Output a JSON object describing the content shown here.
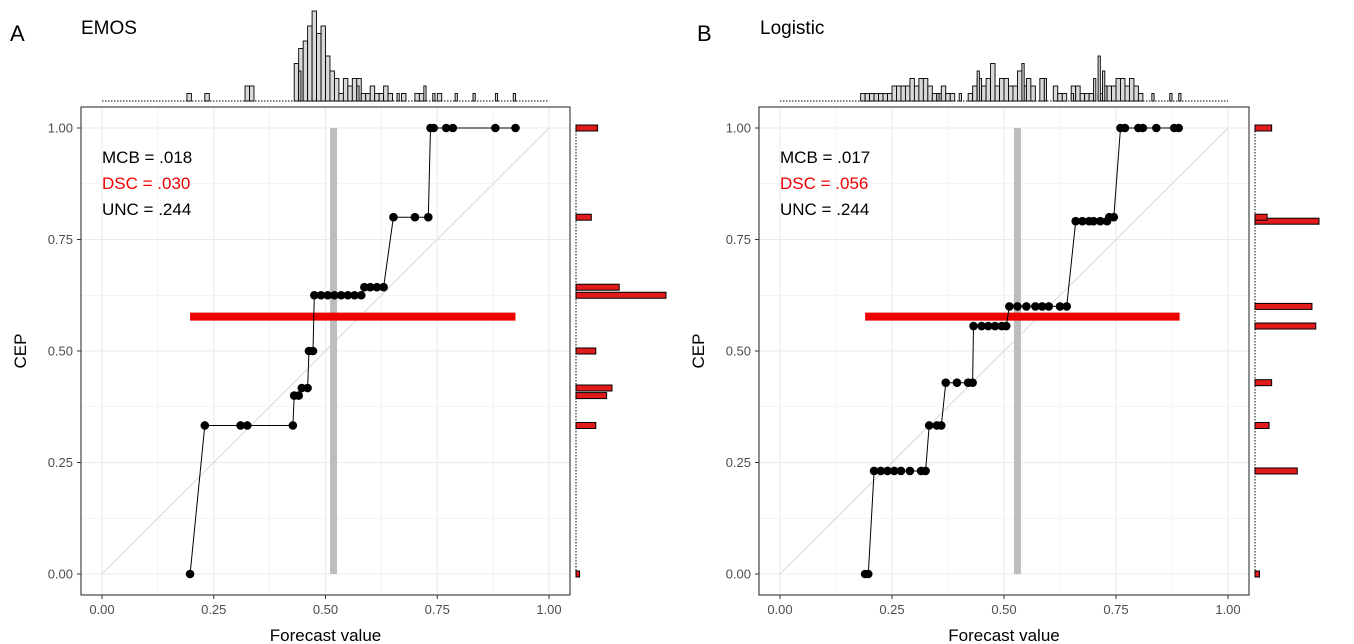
{
  "colors": {
    "background": "#ffffff",
    "grid": "#ebebeb",
    "axis": "#333333",
    "reference_diagonal": "#d9d9d9",
    "vertical_marker": "#bdbdbd",
    "horizontal_marker": "#ee0000",
    "reliability_curve": "#000000",
    "top_histogram_fill": "#d9d9d9",
    "side_histogram_fill": "#e31a1c",
    "dsc_text": "#ee0000"
  },
  "chart_data": [
    {
      "type": "line",
      "panel_letter": "A",
      "title": "EMOS",
      "xlabel": "Forecast value",
      "ylabel": "CEP",
      "xlim": [
        0,
        1
      ],
      "ylim": [
        0,
        1
      ],
      "x_ticks": [
        "0.00",
        "0.25",
        "0.50",
        "0.75",
        "1.00"
      ],
      "y_ticks": [
        "0.00",
        "0.25",
        "0.50",
        "0.75",
        "1.00"
      ],
      "grid": true,
      "stats": [
        {
          "label": "MCB = .018",
          "highlight": false
        },
        {
          "label": "DSC = .030",
          "highlight": true
        },
        {
          "label": "UNC = .244",
          "highlight": false
        }
      ],
      "vertical_marker_x": 0.518,
      "horizontal_marker": {
        "y": 0.577,
        "x_from": 0.197,
        "x_to": 0.925
      },
      "step_points": [
        {
          "x": 0.197,
          "y": 0.0
        },
        {
          "x": 0.23,
          "y": 0.333
        },
        {
          "x": 0.31,
          "y": 0.333
        },
        {
          "x": 0.325,
          "y": 0.333
        },
        {
          "x": 0.427,
          "y": 0.333
        },
        {
          "x": 0.43,
          "y": 0.4
        },
        {
          "x": 0.44,
          "y": 0.4
        },
        {
          "x": 0.447,
          "y": 0.417
        },
        {
          "x": 0.46,
          "y": 0.417
        },
        {
          "x": 0.463,
          "y": 0.5
        },
        {
          "x": 0.472,
          "y": 0.5
        },
        {
          "x": 0.475,
          "y": 0.625
        },
        {
          "x": 0.49,
          "y": 0.625
        },
        {
          "x": 0.505,
          "y": 0.625
        },
        {
          "x": 0.52,
          "y": 0.625
        },
        {
          "x": 0.535,
          "y": 0.625
        },
        {
          "x": 0.55,
          "y": 0.625
        },
        {
          "x": 0.565,
          "y": 0.625
        },
        {
          "x": 0.58,
          "y": 0.625
        },
        {
          "x": 0.587,
          "y": 0.643
        },
        {
          "x": 0.6,
          "y": 0.643
        },
        {
          "x": 0.615,
          "y": 0.643
        },
        {
          "x": 0.63,
          "y": 0.643
        },
        {
          "x": 0.652,
          "y": 0.8
        },
        {
          "x": 0.7,
          "y": 0.8
        },
        {
          "x": 0.73,
          "y": 0.8
        },
        {
          "x": 0.735,
          "y": 1.0
        },
        {
          "x": 0.742,
          "y": 1.0
        },
        {
          "x": 0.77,
          "y": 1.0
        },
        {
          "x": 0.785,
          "y": 1.0
        },
        {
          "x": 0.88,
          "y": 1.0
        },
        {
          "x": 0.925,
          "y": 1.0
        }
      ],
      "top_histogram": {
        "bin_start": 0.0,
        "bin_width": 0.01,
        "counts": [
          0,
          0,
          0,
          0,
          0,
          0,
          0,
          0,
          0,
          0,
          0,
          0,
          0,
          0,
          0,
          0,
          0,
          0,
          0,
          1,
          0,
          0,
          0,
          1,
          0,
          0,
          0,
          0,
          0,
          0,
          0,
          0,
          2,
          2,
          0,
          0,
          0,
          0,
          0,
          0,
          0,
          0,
          0,
          5,
          7,
          8,
          10,
          12,
          9,
          10,
          6,
          4,
          3,
          1,
          3,
          2,
          3,
          3,
          1,
          1,
          2,
          1,
          1,
          2,
          1,
          0,
          0,
          1,
          0,
          0,
          1,
          1,
          0,
          0,
          0,
          1,
          0,
          0,
          0,
          0,
          0,
          0,
          0,
          0,
          0,
          0,
          0,
          0,
          0,
          0,
          0,
          0,
          0,
          0,
          0,
          0,
          0,
          0,
          0,
          0
        ],
        "extra_bars": [
          {
            "x": 0.575,
            "count": 2
          },
          {
            "x": 0.665,
            "count": 1
          },
          {
            "x": 0.795,
            "count": 1
          },
          {
            "x": 0.835,
            "count": 1
          },
          {
            "x": 0.885,
            "count": 1
          },
          {
            "x": 0.925,
            "count": 1
          },
          {
            "x": 0.725,
            "count": 2
          },
          {
            "x": 0.745,
            "count": 1
          },
          {
            "x": 0.445,
            "count": 4
          }
        ]
      },
      "side_histogram": [
        {
          "y": 0.0,
          "count": 0.04
        },
        {
          "y": 0.333,
          "count": 0.22
        },
        {
          "y": 0.4,
          "count": 0.34
        },
        {
          "y": 0.417,
          "count": 0.4
        },
        {
          "y": 0.5,
          "count": 0.22
        },
        {
          "y": 0.625,
          "count": 1.0
        },
        {
          "y": 0.643,
          "count": 0.48
        },
        {
          "y": 0.8,
          "count": 0.17
        },
        {
          "y": 1.0,
          "count": 0.24
        }
      ]
    },
    {
      "type": "line",
      "panel_letter": "B",
      "title": "Logistic",
      "xlabel": "Forecast value",
      "ylabel": "CEP",
      "xlim": [
        0,
        1
      ],
      "ylim": [
        0,
        1
      ],
      "x_ticks": [
        "0.00",
        "0.25",
        "0.50",
        "0.75",
        "1.00"
      ],
      "y_ticks": [
        "0.00",
        "0.25",
        "0.50",
        "0.75",
        "1.00"
      ],
      "grid": true,
      "stats": [
        {
          "label": "MCB = .017",
          "highlight": false
        },
        {
          "label": "DSC = .056",
          "highlight": true
        },
        {
          "label": "UNC = .244",
          "highlight": false
        }
      ],
      "vertical_marker_x": 0.53,
      "horizontal_marker": {
        "y": 0.577,
        "x_from": 0.19,
        "x_to": 0.892
      },
      "step_points": [
        {
          "x": 0.19,
          "y": 0.0
        },
        {
          "x": 0.197,
          "y": 0.0
        },
        {
          "x": 0.21,
          "y": 0.231
        },
        {
          "x": 0.225,
          "y": 0.231
        },
        {
          "x": 0.24,
          "y": 0.231
        },
        {
          "x": 0.255,
          "y": 0.231
        },
        {
          "x": 0.27,
          "y": 0.231
        },
        {
          "x": 0.29,
          "y": 0.231
        },
        {
          "x": 0.315,
          "y": 0.231
        },
        {
          "x": 0.325,
          "y": 0.231
        },
        {
          "x": 0.333,
          "y": 0.333
        },
        {
          "x": 0.35,
          "y": 0.333
        },
        {
          "x": 0.36,
          "y": 0.333
        },
        {
          "x": 0.37,
          "y": 0.429
        },
        {
          "x": 0.395,
          "y": 0.429
        },
        {
          "x": 0.42,
          "y": 0.429
        },
        {
          "x": 0.43,
          "y": 0.429
        },
        {
          "x": 0.432,
          "y": 0.556
        },
        {
          "x": 0.45,
          "y": 0.556
        },
        {
          "x": 0.465,
          "y": 0.556
        },
        {
          "x": 0.48,
          "y": 0.556
        },
        {
          "x": 0.495,
          "y": 0.556
        },
        {
          "x": 0.505,
          "y": 0.556
        },
        {
          "x": 0.512,
          "y": 0.6
        },
        {
          "x": 0.53,
          "y": 0.6
        },
        {
          "x": 0.55,
          "y": 0.6
        },
        {
          "x": 0.57,
          "y": 0.6
        },
        {
          "x": 0.585,
          "y": 0.6
        },
        {
          "x": 0.6,
          "y": 0.6
        },
        {
          "x": 0.625,
          "y": 0.6
        },
        {
          "x": 0.64,
          "y": 0.6
        },
        {
          "x": 0.66,
          "y": 0.791
        },
        {
          "x": 0.675,
          "y": 0.791
        },
        {
          "x": 0.69,
          "y": 0.791
        },
        {
          "x": 0.7,
          "y": 0.791
        },
        {
          "x": 0.715,
          "y": 0.791
        },
        {
          "x": 0.73,
          "y": 0.791
        },
        {
          "x": 0.735,
          "y": 0.8
        },
        {
          "x": 0.745,
          "y": 0.8
        },
        {
          "x": 0.76,
          "y": 1.0
        },
        {
          "x": 0.77,
          "y": 1.0
        },
        {
          "x": 0.8,
          "y": 1.0
        },
        {
          "x": 0.81,
          "y": 1.0
        },
        {
          "x": 0.84,
          "y": 1.0
        },
        {
          "x": 0.88,
          "y": 1.0
        },
        {
          "x": 0.89,
          "y": 1.0
        }
      ],
      "top_histogram": {
        "bin_start": 0.0,
        "bin_width": 0.01,
        "counts": [
          0,
          0,
          0,
          0,
          0,
          0,
          0,
          0,
          0,
          0,
          0,
          0,
          0,
          0,
          0,
          0,
          0,
          0,
          1,
          1,
          1,
          1,
          1,
          1,
          1,
          2,
          2,
          2,
          2,
          3,
          2,
          3,
          3,
          2,
          1,
          1,
          2,
          1,
          1,
          0,
          0,
          0,
          1,
          2,
          3,
          2,
          3,
          5,
          2,
          3,
          3,
          2,
          2,
          4,
          2,
          3,
          2,
          0,
          3,
          0,
          0,
          2,
          1,
          1,
          0,
          2,
          2,
          1,
          1,
          1,
          0,
          1,
          2,
          2,
          2,
          3,
          3,
          2,
          3,
          2,
          1,
          0,
          0,
          0,
          0,
          0,
          0,
          0,
          0,
          0,
          0,
          0,
          0,
          0,
          0,
          0,
          0,
          0,
          0,
          0
        ],
        "extra_bars": [
          {
            "x": 0.355,
            "count": 1
          },
          {
            "x": 0.405,
            "count": 1
          },
          {
            "x": 0.545,
            "count": 5
          },
          {
            "x": 0.595,
            "count": 3
          },
          {
            "x": 0.655,
            "count": 1
          },
          {
            "x": 0.705,
            "count": 3
          },
          {
            "x": 0.715,
            "count": 6
          },
          {
            "x": 0.725,
            "count": 4
          },
          {
            "x": 0.835,
            "count": 1
          },
          {
            "x": 0.875,
            "count": 1
          },
          {
            "x": 0.895,
            "count": 1
          },
          {
            "x": 0.445,
            "count": 4
          }
        ]
      },
      "side_histogram": [
        {
          "y": 0.0,
          "count": 0.07
        },
        {
          "y": 0.231,
          "count": 0.66
        },
        {
          "y": 0.333,
          "count": 0.22
        },
        {
          "y": 0.429,
          "count": 0.26
        },
        {
          "y": 0.556,
          "count": 0.95
        },
        {
          "y": 0.6,
          "count": 0.89
        },
        {
          "y": 0.791,
          "count": 1.0
        },
        {
          "y": 0.8,
          "count": 0.19
        },
        {
          "y": 1.0,
          "count": 0.26
        }
      ]
    }
  ]
}
